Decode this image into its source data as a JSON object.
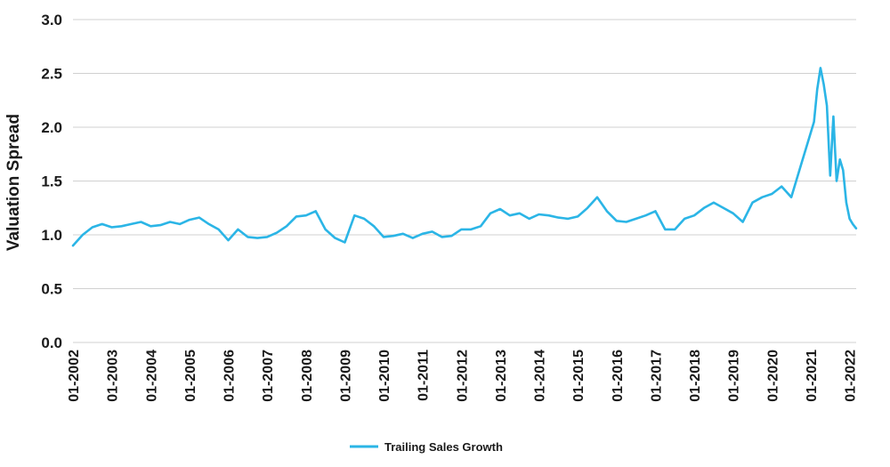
{
  "chart_data": {
    "type": "line",
    "title": "",
    "xlabel": "",
    "ylabel": "Valuation Spread",
    "ylim": [
      0.0,
      3.0
    ],
    "yticks": [
      "0.0",
      "0.5",
      "1.0",
      "1.5",
      "2.0",
      "2.5",
      "3.0"
    ],
    "xticks": [
      "01-2002",
      "01-2003",
      "01-2004",
      "01-2005",
      "01-2006",
      "01-2007",
      "01-2008",
      "01-2009",
      "01-2010",
      "01-2011",
      "01-2012",
      "01-2013",
      "01-2014",
      "01-2015",
      "01-2016",
      "01-2017",
      "01-2018",
      "01-2019",
      "01-2020",
      "01-2021",
      "01-2022"
    ],
    "grid": true,
    "legend": "bottom-center",
    "series": [
      {
        "name": "Trailing Sales Growth",
        "color": "#2bb5e6",
        "x": [
          "01-2002",
          "04-2002",
          "07-2002",
          "10-2002",
          "01-2003",
          "04-2003",
          "07-2003",
          "10-2003",
          "01-2004",
          "04-2004",
          "07-2004",
          "10-2004",
          "01-2005",
          "04-2005",
          "07-2005",
          "10-2005",
          "01-2006",
          "04-2006",
          "07-2006",
          "10-2006",
          "01-2007",
          "04-2007",
          "07-2007",
          "10-2007",
          "01-2008",
          "04-2008",
          "07-2008",
          "10-2008",
          "01-2009",
          "04-2009",
          "07-2009",
          "10-2009",
          "01-2010",
          "04-2010",
          "07-2010",
          "10-2010",
          "01-2011",
          "04-2011",
          "07-2011",
          "10-2011",
          "01-2012",
          "04-2012",
          "07-2012",
          "10-2012",
          "01-2013",
          "04-2013",
          "07-2013",
          "10-2013",
          "01-2014",
          "04-2014",
          "07-2014",
          "10-2014",
          "01-2015",
          "04-2015",
          "07-2015",
          "10-2015",
          "01-2016",
          "04-2016",
          "07-2016",
          "10-2016",
          "01-2017",
          "04-2017",
          "07-2017",
          "10-2017",
          "01-2018",
          "04-2018",
          "07-2018",
          "10-2018",
          "01-2019",
          "04-2019",
          "07-2019",
          "10-2019",
          "01-2020",
          "04-2020",
          "07-2020",
          "10-2020",
          "01-2021",
          "02-2021",
          "03-2021",
          "04-2021",
          "05-2021",
          "06-2021",
          "07-2021",
          "08-2021",
          "09-2021",
          "10-2021",
          "11-2021",
          "12-2021",
          "01-2022",
          "02-2022",
          "03-2022"
        ],
        "values": [
          0.9,
          1.0,
          1.07,
          1.1,
          1.07,
          1.08,
          1.1,
          1.12,
          1.08,
          1.09,
          1.12,
          1.1,
          1.14,
          1.16,
          1.1,
          1.05,
          0.95,
          1.05,
          0.98,
          0.97,
          0.98,
          1.02,
          1.08,
          1.17,
          1.18,
          1.22,
          1.05,
          0.97,
          0.93,
          1.18,
          1.15,
          1.08,
          0.98,
          0.99,
          1.01,
          0.97,
          1.01,
          1.03,
          0.98,
          0.99,
          1.05,
          1.05,
          1.08,
          1.2,
          1.24,
          1.18,
          1.2,
          1.15,
          1.19,
          1.18,
          1.16,
          1.15,
          1.17,
          1.25,
          1.35,
          1.22,
          1.13,
          1.12,
          1.15,
          1.18,
          1.22,
          1.05,
          1.05,
          1.15,
          1.18,
          1.25,
          1.3,
          1.25,
          1.2,
          1.12,
          1.3,
          1.35,
          1.38,
          1.45,
          1.35,
          1.65,
          1.95,
          2.05,
          2.35,
          2.55,
          2.4,
          2.2,
          1.55,
          2.1,
          1.5,
          1.7,
          1.6,
          1.3,
          1.15,
          1.1,
          1.06
        ]
      }
    ]
  }
}
